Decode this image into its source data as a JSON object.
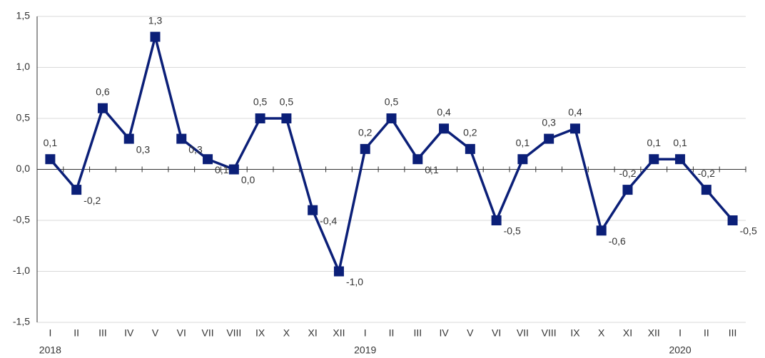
{
  "chart_data": {
    "type": "line",
    "categories": [
      "I",
      "II",
      "III",
      "IV",
      "V",
      "VI",
      "VII",
      "VIII",
      "IX",
      "X",
      "XI",
      "XII",
      "I",
      "II",
      "III",
      "IV",
      "V",
      "VI",
      "VII",
      "VIII",
      "IX",
      "X",
      "XI",
      "XII",
      "I",
      "II",
      "III"
    ],
    "x_groups": [
      {
        "label": "2018",
        "count": 12
      },
      {
        "label": "2019",
        "count": 12
      },
      {
        "label": "2020",
        "count": 3
      }
    ],
    "series": [
      {
        "color": "#0b1f78",
        "values": [
          0.1,
          -0.2,
          0.6,
          0.3,
          1.3,
          0.3,
          0.1,
          0.0,
          0.5,
          0.5,
          -0.4,
          -1.0,
          0.2,
          0.5,
          0.1,
          0.4,
          0.2,
          -0.5,
          0.1,
          0.3,
          0.4,
          -0.6,
          -0.2,
          0.1,
          0.1,
          -0.2,
          -0.5
        ],
        "value_labels": [
          "0,1",
          "-0,2",
          "0,6",
          "0,3",
          "1,3",
          "0,3",
          "0,1",
          "0,0",
          "0,5",
          "0,5",
          "-0,4",
          "-1,0",
          "0,2",
          "0,5",
          "0,1",
          "0,4",
          "0,2",
          "-0,5",
          "0,1",
          "0,3",
          "0,4",
          "-0,6",
          "-0,2",
          "0,1",
          "0,1",
          "-0,2",
          "-0,5"
        ]
      }
    ],
    "ylim": [
      -1.5,
      1.5
    ],
    "yticks": [
      {
        "value": -1.5,
        "label": "-1,5"
      },
      {
        "value": -1.0,
        "label": "-1,0"
      },
      {
        "value": -0.5,
        "label": "-0,5"
      },
      {
        "value": 0.0,
        "label": "0,0"
      },
      {
        "value": 0.5,
        "label": "0,5"
      },
      {
        "value": 1.0,
        "label": "1,0"
      },
      {
        "value": 1.5,
        "label": "1,5"
      }
    ],
    "grid": true
  }
}
